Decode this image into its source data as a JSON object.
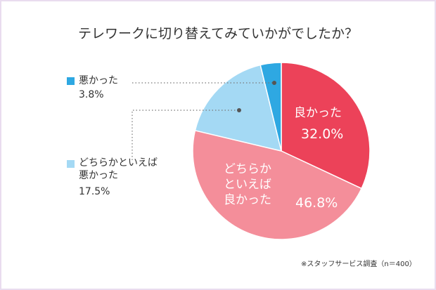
{
  "chart_data": {
    "type": "pie",
    "title": "テレワークに切り替えてみていかがでしたか？",
    "categories": [
      "良かった",
      "どちらかといえば良かった",
      "どちらかといえば悪かった",
      "悪かった"
    ],
    "values": [
      32.0,
      46.8,
      17.5,
      3.8
    ],
    "value_labels": [
      "32.0%",
      "46.8%",
      "17.5%",
      "3.8%"
    ],
    "colors": [
      "#ec4259",
      "#f48e9a",
      "#a4d9f4",
      "#2ea8e2"
    ],
    "note": "※スタッフサービス調査（n＝400）"
  }
}
